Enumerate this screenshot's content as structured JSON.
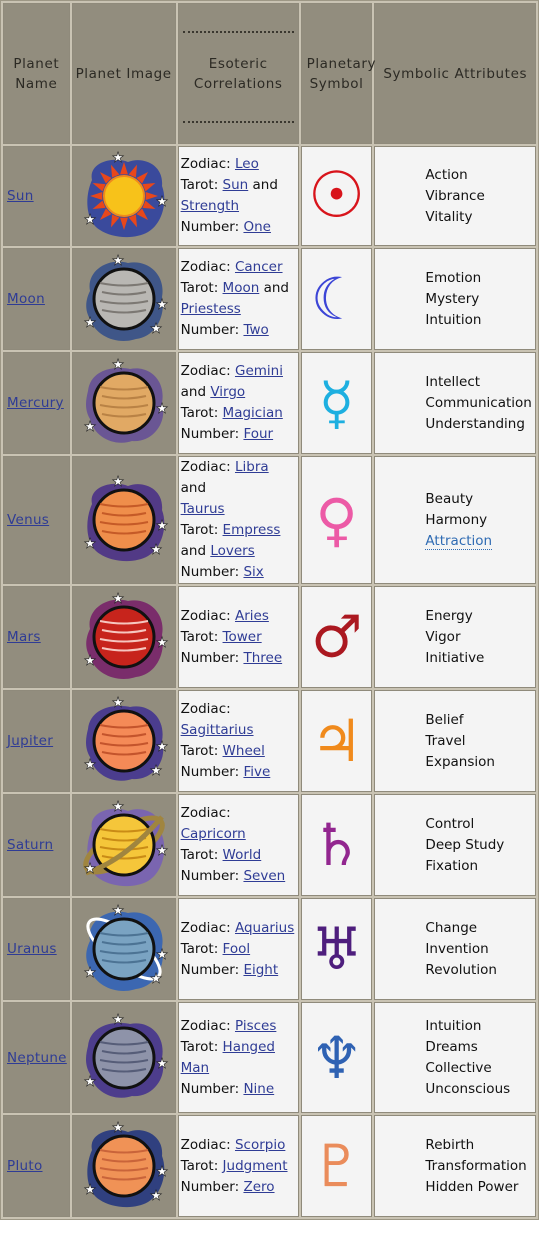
{
  "headers": {
    "name": "Planet Name",
    "image": "Planet Image",
    "correlations": "Esoteric Correlations",
    "symbol": "Planetary Symbol",
    "attributes": "Symbolic Attributes"
  },
  "rows": [
    {
      "name": "Sun",
      "zodiac": "Leo",
      "tarot": "Sun",
      "tarot2": "Strength",
      "number": "One",
      "symbol": "☉",
      "symbolColor": "#d8141b",
      "attr1": "Action",
      "attr2": "Vibrance",
      "attr3": "Vitality"
    },
    {
      "name": "Moon",
      "zodiac": "Cancer",
      "tarot": "Moon",
      "tarot2": "Priestess",
      "number": "Two",
      "symbol": "☾",
      "symbolColor": "#3c45d6",
      "attr1": "Emotion",
      "attr2": "Mystery",
      "attr3": "Intuition"
    },
    {
      "name": "Mercury",
      "zodiac": "Gemini",
      "zodiac2": "Virgo",
      "tarot": "Magician",
      "number": "Four",
      "symbol": "☿",
      "symbolColor": "#1dafe0",
      "attr1": "Intellect",
      "attr2": "Communication",
      "attr3": "Understanding"
    },
    {
      "name": "Venus",
      "zodiac": "Libra",
      "zodiac2": "Taurus",
      "tarot": "Empress",
      "tarot2": "Lovers",
      "number": "Six",
      "symbol": "♀",
      "symbolColor": "#ec5aa6",
      "attr1": "Beauty",
      "attr2": "Harmony",
      "attr3": "Attraction"
    },
    {
      "name": "Mars",
      "zodiac": "Aries",
      "tarot": "Tower",
      "number": "Three",
      "symbol": "♂",
      "symbolColor": "#ab1820",
      "attr1": "Energy",
      "attr2": "Vigor",
      "attr3": "Initiative"
    },
    {
      "name": "Jupiter",
      "zodiac": "Sagittarius",
      "tarot": "Wheel",
      "number": "Five",
      "symbol": "♃",
      "symbolColor": "#f08a1c",
      "attr1": "Belief",
      "attr2": "Travel",
      "attr3": "Expansion"
    },
    {
      "name": "Saturn",
      "zodiac": "Capricorn",
      "tarot": "World",
      "number": "Seven",
      "symbol": "♄",
      "symbolColor": "#92268f",
      "attr1": "Control",
      "attr2": "Deep Study",
      "attr3": "Fixation"
    },
    {
      "name": "Uranus",
      "zodiac": "Aquarius",
      "tarot": "Fool",
      "number": "Eight",
      "symbol": "♅",
      "symbolColor": "#4e1e7d",
      "attr1": "Change",
      "attr2": "Invention",
      "attr3": "Revolution"
    },
    {
      "name": "Neptune",
      "zodiac": "Pisces",
      "tarot": "Hanged",
      "tarot_line2": "Man",
      "number": "Nine",
      "symbol": "♆",
      "symbolColor": "#2f62b3",
      "attr1": "Intuition",
      "attr2": "Dreams",
      "attr3": "Collective",
      "attr4": "Unconscious"
    },
    {
      "name": "Pluto",
      "zodiac": "Scorpio",
      "tarot": "Judgment",
      "number": "Zero",
      "symbol": "♇",
      "symbolColor": "#ea8c5b",
      "attr1": "Rebirth",
      "attr2": "Transformation",
      "attr3": "Hidden Power"
    }
  ],
  "labels": {
    "zodiac": "Zodiac:",
    "tarot": "Tarot:",
    "number": "Number:",
    "and": "and"
  },
  "images": [
    {
      "icon": "sun-icon",
      "blob": "#3a4a9c",
      "body": "#f7c21a",
      "accent": "#e8471b"
    },
    {
      "icon": "moon-planet-icon",
      "blob": "#3f5688",
      "body": "#b9b7b3",
      "accent": "#7c7873"
    },
    {
      "icon": "mercury-planet-icon",
      "blob": "#6a5694",
      "body": "#e1a964",
      "accent": "#b98245"
    },
    {
      "icon": "venus-planet-icon",
      "blob": "#523a86",
      "body": "#ef8e4b",
      "accent": "#c55a27"
    },
    {
      "icon": "mars-planet-icon",
      "blob": "#7a2d6b",
      "body": "#c7241c",
      "accent": "#f6c6bf"
    },
    {
      "icon": "jupiter-planet-icon",
      "blob": "#4b3d8e",
      "body": "#f58a57",
      "accent": "#c4542c"
    },
    {
      "icon": "saturn-planet-icon",
      "blob": "#7a65b0",
      "body": "#f5c63a",
      "accent": "#c98b16"
    },
    {
      "icon": "uranus-planet-icon",
      "blob": "#3c67b1",
      "body": "#7aa3c2",
      "accent": "#4c7394"
    },
    {
      "icon": "neptune-planet-icon",
      "blob": "#4d3d8c",
      "body": "#8e93a9",
      "accent": "#565d78"
    },
    {
      "icon": "pluto-planet-icon",
      "blob": "#30407f",
      "body": "#f09256",
      "accent": "#c9643a"
    }
  ]
}
